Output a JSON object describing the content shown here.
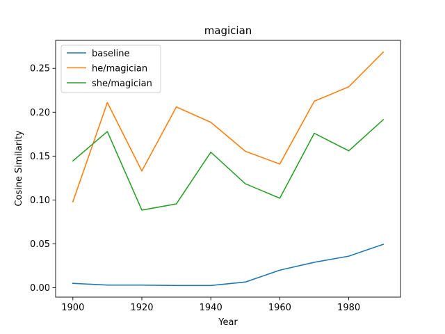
{
  "chart_data": {
    "type": "line",
    "title": "magician",
    "xlabel": "Year",
    "ylabel": "Cosine Similarity",
    "x": [
      1900,
      1910,
      1920,
      1930,
      1940,
      1950,
      1960,
      1970,
      1980,
      1990
    ],
    "xlim": [
      1895,
      1995
    ],
    "ylim": [
      -0.0107,
      0.2819
    ],
    "xticks": [
      1900,
      1920,
      1940,
      1960,
      1980
    ],
    "yticks": [
      0.0,
      0.05,
      0.1,
      0.15,
      0.2,
      0.25
    ],
    "xtick_labels": [
      "1900",
      "1920",
      "1940",
      "1960",
      "1980"
    ],
    "ytick_labels": [
      "0.00",
      "0.05",
      "0.10",
      "0.15",
      "0.20",
      "0.25"
    ],
    "grid": false,
    "legend_position": "upper-left",
    "series": [
      {
        "name": "baseline",
        "color": "#1f77b4",
        "values": [
          0.005,
          0.003,
          0.003,
          0.0025,
          0.0025,
          0.0065,
          0.02,
          0.029,
          0.036,
          0.0495
        ]
      },
      {
        "name": "he/magician",
        "color": "#ff7f0e",
        "values": [
          0.098,
          0.211,
          0.133,
          0.206,
          0.1885,
          0.1555,
          0.141,
          0.2125,
          0.229,
          0.2685
        ]
      },
      {
        "name": "she/magician",
        "color": "#2ca02c",
        "values": [
          0.1445,
          0.178,
          0.0885,
          0.0955,
          0.1545,
          0.1185,
          0.102,
          0.176,
          0.156,
          0.1915
        ]
      }
    ]
  }
}
